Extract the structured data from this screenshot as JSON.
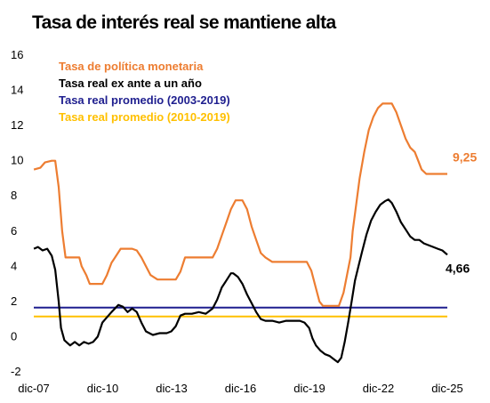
{
  "title": "Tasa de interés real se mantiene alta",
  "chart_data": {
    "type": "line",
    "title": "Tasa de interés real se mantiene alta",
    "xlabel": "",
    "ylabel": "",
    "xlim": [
      2007.917,
      2025.917
    ],
    "ylim": [
      -2,
      16
    ],
    "y_ticks": [
      -2,
      0,
      2,
      4,
      6,
      8,
      10,
      12,
      14,
      16
    ],
    "x_ticks": [
      {
        "label": "dic-07",
        "x": 2007.917
      },
      {
        "label": "dic-10",
        "x": 2010.917
      },
      {
        "label": "dic-13",
        "x": 2013.917
      },
      {
        "label": "dic-16",
        "x": 2016.917
      },
      {
        "label": "dic-19",
        "x": 2019.917
      },
      {
        "label": "dic-22",
        "x": 2022.917
      },
      {
        "label": "dic-25",
        "x": 2025.917
      }
    ],
    "grid": false,
    "legend_position": "top-left",
    "series": [
      {
        "name": "Tasa de política monetaria",
        "color": "#ED7D31",
        "end_label": "9,25",
        "points": [
          [
            2007.92,
            9.5
          ],
          [
            2008.2,
            9.6
          ],
          [
            2008.4,
            9.9
          ],
          [
            2008.7,
            10.0
          ],
          [
            2008.85,
            10.0
          ],
          [
            2009.0,
            8.5
          ],
          [
            2009.15,
            6.0
          ],
          [
            2009.3,
            4.5
          ],
          [
            2009.5,
            4.5
          ],
          [
            2009.9,
            4.5
          ],
          [
            2010.0,
            4.0
          ],
          [
            2010.2,
            3.5
          ],
          [
            2010.35,
            3.0
          ],
          [
            2010.6,
            3.0
          ],
          [
            2010.9,
            3.0
          ],
          [
            2011.1,
            3.5
          ],
          [
            2011.3,
            4.2
          ],
          [
            2011.5,
            4.6
          ],
          [
            2011.7,
            5.0
          ],
          [
            2011.9,
            5.0
          ],
          [
            2012.2,
            5.0
          ],
          [
            2012.4,
            4.9
          ],
          [
            2012.6,
            4.5
          ],
          [
            2012.8,
            4.0
          ],
          [
            2013.0,
            3.5
          ],
          [
            2013.3,
            3.25
          ],
          [
            2013.8,
            3.25
          ],
          [
            2014.1,
            3.25
          ],
          [
            2014.3,
            3.7
          ],
          [
            2014.5,
            4.5
          ],
          [
            2015.0,
            4.5
          ],
          [
            2015.7,
            4.5
          ],
          [
            2015.9,
            5.0
          ],
          [
            2016.1,
            5.75
          ],
          [
            2016.3,
            6.5
          ],
          [
            2016.5,
            7.25
          ],
          [
            2016.7,
            7.75
          ],
          [
            2017.0,
            7.75
          ],
          [
            2017.2,
            7.25
          ],
          [
            2017.4,
            6.25
          ],
          [
            2017.6,
            5.5
          ],
          [
            2017.8,
            4.75
          ],
          [
            2018.0,
            4.5
          ],
          [
            2018.3,
            4.25
          ],
          [
            2019.0,
            4.25
          ],
          [
            2019.5,
            4.25
          ],
          [
            2019.8,
            4.25
          ],
          [
            2020.0,
            3.75
          ],
          [
            2020.2,
            2.75
          ],
          [
            2020.35,
            2.0
          ],
          [
            2020.5,
            1.75
          ],
          [
            2021.0,
            1.75
          ],
          [
            2021.2,
            1.75
          ],
          [
            2021.4,
            2.5
          ],
          [
            2021.55,
            3.5
          ],
          [
            2021.7,
            4.5
          ],
          [
            2021.8,
            6.0
          ],
          [
            2021.95,
            7.5
          ],
          [
            2022.1,
            9.0
          ],
          [
            2022.3,
            10.5
          ],
          [
            2022.5,
            11.75
          ],
          [
            2022.7,
            12.5
          ],
          [
            2022.9,
            13.0
          ],
          [
            2023.1,
            13.25
          ],
          [
            2023.5,
            13.25
          ],
          [
            2023.7,
            12.75
          ],
          [
            2023.9,
            12.0
          ],
          [
            2024.1,
            11.25
          ],
          [
            2024.3,
            10.75
          ],
          [
            2024.5,
            10.5
          ],
          [
            2024.65,
            10.0
          ],
          [
            2024.8,
            9.5
          ],
          [
            2025.0,
            9.25
          ],
          [
            2025.5,
            9.25
          ],
          [
            2025.917,
            9.25
          ]
        ]
      },
      {
        "name": "Tasa real ex ante a un año",
        "color": "#000000",
        "end_label": "4,66",
        "points": [
          [
            2007.92,
            5.0
          ],
          [
            2008.1,
            5.1
          ],
          [
            2008.3,
            4.9
          ],
          [
            2008.5,
            5.0
          ],
          [
            2008.7,
            4.6
          ],
          [
            2008.85,
            3.8
          ],
          [
            2009.0,
            2.0
          ],
          [
            2009.1,
            0.5
          ],
          [
            2009.25,
            -0.2
          ],
          [
            2009.5,
            -0.5
          ],
          [
            2009.7,
            -0.3
          ],
          [
            2009.9,
            -0.5
          ],
          [
            2010.1,
            -0.3
          ],
          [
            2010.3,
            -0.4
          ],
          [
            2010.5,
            -0.3
          ],
          [
            2010.7,
            0.0
          ],
          [
            2010.9,
            0.8
          ],
          [
            2011.1,
            1.1
          ],
          [
            2011.3,
            1.4
          ],
          [
            2011.6,
            1.8
          ],
          [
            2011.8,
            1.7
          ],
          [
            2012.0,
            1.4
          ],
          [
            2012.2,
            1.6
          ],
          [
            2012.4,
            1.4
          ],
          [
            2012.6,
            0.8
          ],
          [
            2012.8,
            0.3
          ],
          [
            2013.1,
            0.1
          ],
          [
            2013.4,
            0.2
          ],
          [
            2013.7,
            0.2
          ],
          [
            2013.9,
            0.3
          ],
          [
            2014.1,
            0.6
          ],
          [
            2014.3,
            1.2
          ],
          [
            2014.5,
            1.3
          ],
          [
            2014.8,
            1.3
          ],
          [
            2015.1,
            1.4
          ],
          [
            2015.4,
            1.3
          ],
          [
            2015.7,
            1.6
          ],
          [
            2015.9,
            2.1
          ],
          [
            2016.1,
            2.8
          ],
          [
            2016.3,
            3.2
          ],
          [
            2016.5,
            3.6
          ],
          [
            2016.6,
            3.6
          ],
          [
            2016.8,
            3.4
          ],
          [
            2017.0,
            3.0
          ],
          [
            2017.2,
            2.4
          ],
          [
            2017.4,
            1.9
          ],
          [
            2017.6,
            1.4
          ],
          [
            2017.8,
            1.0
          ],
          [
            2018.0,
            0.9
          ],
          [
            2018.3,
            0.9
          ],
          [
            2018.6,
            0.8
          ],
          [
            2018.9,
            0.9
          ],
          [
            2019.2,
            0.9
          ],
          [
            2019.5,
            0.9
          ],
          [
            2019.7,
            0.8
          ],
          [
            2019.9,
            0.5
          ],
          [
            2020.05,
            -0.1
          ],
          [
            2020.2,
            -0.5
          ],
          [
            2020.4,
            -0.8
          ],
          [
            2020.6,
            -1.0
          ],
          [
            2020.8,
            -1.1
          ],
          [
            2021.0,
            -1.3
          ],
          [
            2021.15,
            -1.45
          ],
          [
            2021.3,
            -1.2
          ],
          [
            2021.45,
            -0.3
          ],
          [
            2021.6,
            0.8
          ],
          [
            2021.75,
            2.0
          ],
          [
            2021.9,
            3.2
          ],
          [
            2022.05,
            4.0
          ],
          [
            2022.2,
            4.8
          ],
          [
            2022.4,
            5.8
          ],
          [
            2022.6,
            6.6
          ],
          [
            2022.8,
            7.1
          ],
          [
            2023.0,
            7.5
          ],
          [
            2023.2,
            7.7
          ],
          [
            2023.35,
            7.8
          ],
          [
            2023.5,
            7.6
          ],
          [
            2023.7,
            7.1
          ],
          [
            2023.9,
            6.5
          ],
          [
            2024.1,
            6.1
          ],
          [
            2024.3,
            5.7
          ],
          [
            2024.5,
            5.5
          ],
          [
            2024.7,
            5.5
          ],
          [
            2024.9,
            5.3
          ],
          [
            2025.1,
            5.2
          ],
          [
            2025.3,
            5.1
          ],
          [
            2025.5,
            5.0
          ],
          [
            2025.7,
            4.9
          ],
          [
            2025.917,
            4.66
          ]
        ]
      },
      {
        "name": "Tasa real promedio (2003-2019)",
        "color": "#1F1F8F",
        "constant": 1.65
      },
      {
        "name": "Tasa real promedio (2010-2019)",
        "color": "#FFC000",
        "constant": 1.15
      }
    ]
  }
}
